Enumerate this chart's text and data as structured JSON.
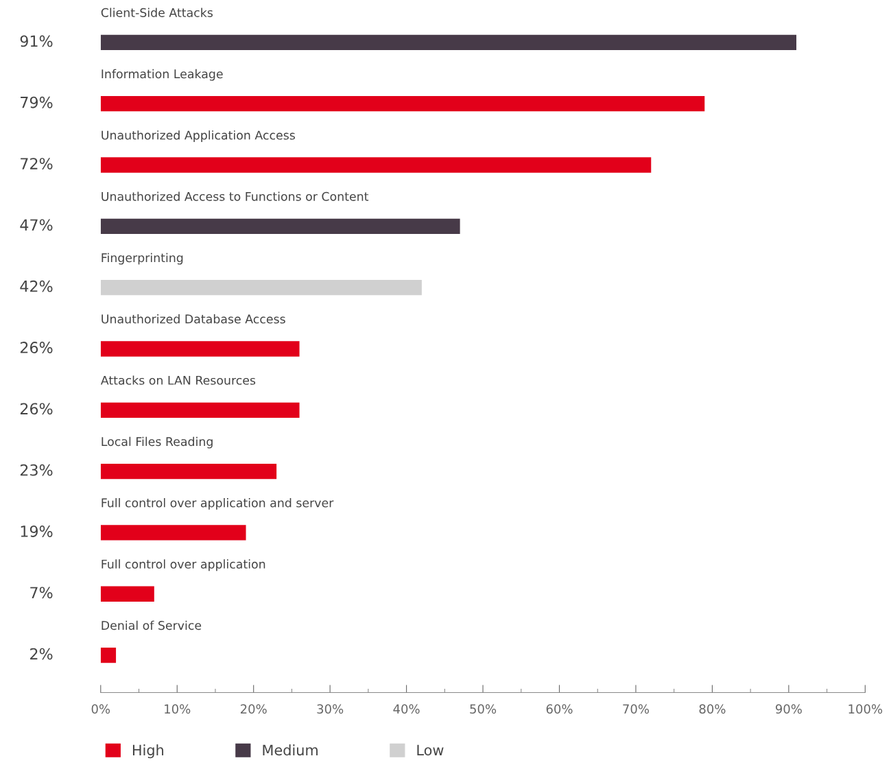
{
  "chart_data": {
    "type": "bar",
    "orientation": "horizontal",
    "categories": [
      "Client-Side Attacks",
      "Information Leakage",
      "Unauthorized Application Access",
      "Unauthorized Access to Functions or Content",
      "Fingerprinting",
      "Unauthorized Database Access",
      "Attacks on LAN Resources",
      "Local Files Reading",
      "Full control over application and server",
      "Full control over application",
      "Denial of Service"
    ],
    "series": [
      {
        "name": "High",
        "color": "#e2001a",
        "values": [
          null,
          79,
          72,
          null,
          null,
          26,
          26,
          23,
          19,
          7,
          2
        ],
        "value_labels": [
          null,
          "79%",
          "72%",
          null,
          null,
          "26%",
          "26%",
          "23%",
          "19%",
          "7%",
          "2%"
        ]
      },
      {
        "name": "Medium",
        "color": "#473a48",
        "values": [
          91,
          null,
          null,
          47,
          null,
          null,
          null,
          null,
          null,
          null,
          null
        ],
        "value_labels": [
          "91%",
          null,
          null,
          "47%",
          null,
          null,
          null,
          null,
          null,
          null,
          null
        ]
      },
      {
        "name": "Low",
        "color": "#d0d0d0",
        "values": [
          null,
          null,
          null,
          null,
          42,
          null,
          null,
          null,
          null,
          null,
          null
        ],
        "value_labels": [
          null,
          null,
          null,
          null,
          "42%",
          null,
          null,
          null,
          null,
          null,
          null
        ]
      }
    ],
    "xlim": [
      0,
      100
    ],
    "xticks": [
      {
        "value": 0,
        "label": "0%"
      },
      {
        "value": 5,
        "label": null
      },
      {
        "value": 10,
        "label": "10%"
      },
      {
        "value": 15,
        "label": null
      },
      {
        "value": 20,
        "label": "20%"
      },
      {
        "value": 25,
        "label": null
      },
      {
        "value": 30,
        "label": "30%"
      },
      {
        "value": 35,
        "label": null
      },
      {
        "value": 40,
        "label": "40%"
      },
      {
        "value": 45,
        "label": null
      },
      {
        "value": 50,
        "label": "50%"
      },
      {
        "value": 55,
        "label": null
      },
      {
        "value": 60,
        "label": "60%"
      },
      {
        "value": 65,
        "label": null
      },
      {
        "value": 70,
        "label": "70%"
      },
      {
        "value": 75,
        "label": null
      },
      {
        "value": 80,
        "label": "80%"
      },
      {
        "value": 85,
        "label": null
      },
      {
        "value": 90,
        "label": "90%"
      },
      {
        "value": 95,
        "label": null
      },
      {
        "value": 100,
        "label": "100%"
      }
    ],
    "grid": false,
    "legend": "bottom"
  }
}
